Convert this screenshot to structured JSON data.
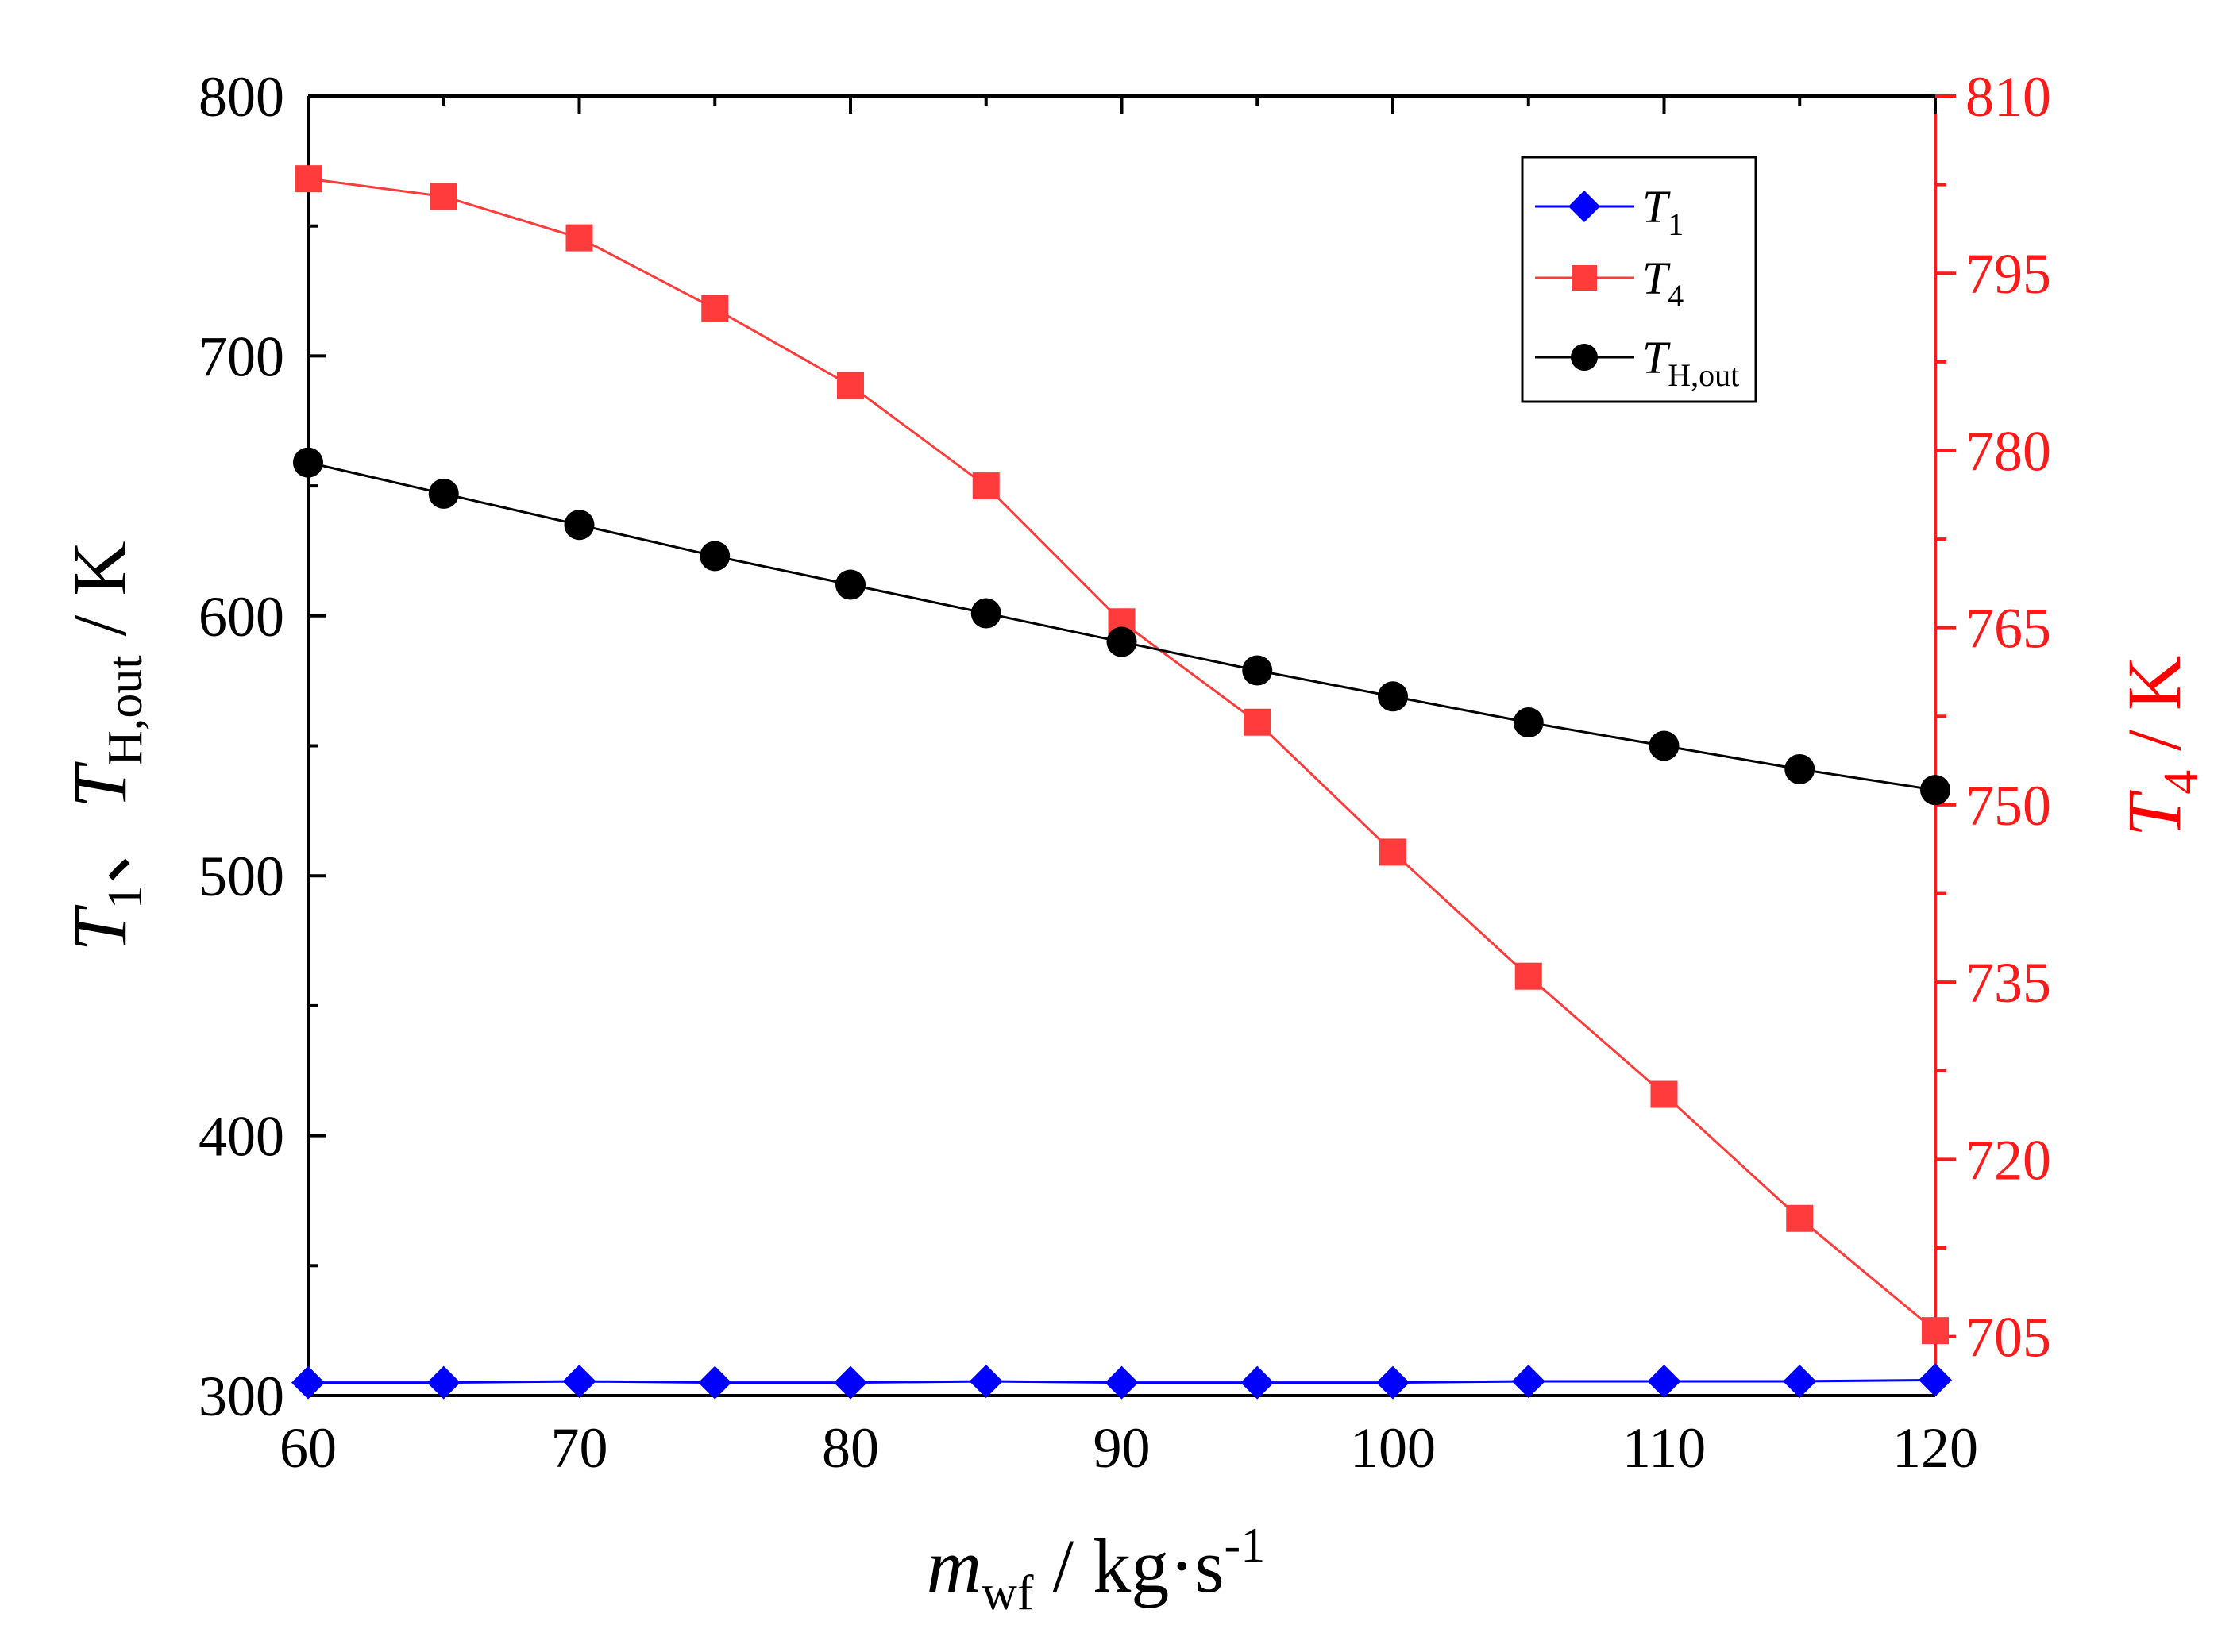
{
  "chart_data": {
    "type": "line",
    "x": [
      60,
      65,
      70,
      75,
      80,
      85,
      90,
      95,
      100,
      105,
      110,
      115,
      120
    ],
    "xlim": [
      60,
      120
    ],
    "x_ticks": [
      60,
      70,
      80,
      90,
      100,
      110,
      120
    ],
    "ylim_left": [
      300,
      800
    ],
    "y_ticks_left": [
      300,
      400,
      500,
      600,
      700,
      800
    ],
    "ylim_right": [
      700,
      810
    ],
    "y_ticks_right": [
      705,
      720,
      735,
      750,
      765,
      780,
      795,
      810
    ],
    "grid": false,
    "legend_position": "top-right",
    "xlabel": {
      "main": "m",
      "sub": "wf",
      "rest": " / kg·s",
      "sup": "-1"
    },
    "ylabel_left": {
      "t1": "T",
      "t1_sub": "1",
      "sep": "、",
      "th": "T",
      "th_sub": "H,out",
      "unit": " / K"
    },
    "ylabel_right": {
      "main": "T",
      "sub": "4",
      "unit": " / K"
    },
    "series": [
      {
        "name": "T",
        "name_sub": "1",
        "axis": "left",
        "color": "#0000ff",
        "marker": "diamond",
        "values": [
          305,
          305,
          305.5,
          305,
          305,
          305.5,
          305,
          305,
          305,
          305.5,
          305.5,
          305.5,
          306
        ]
      },
      {
        "name": "T",
        "name_sub": "4",
        "axis": "right",
        "color": "#ff3b3b",
        "marker": "square",
        "values": [
          803,
          801.5,
          798,
          792,
          785.5,
          777,
          765.5,
          757,
          746,
          735.5,
          725.5,
          715,
          705.5
        ]
      },
      {
        "name": "T",
        "name_sub": "H,out",
        "axis": "left",
        "color": "#000000",
        "marker": "circle",
        "values": [
          659,
          647,
          635,
          623,
          612,
          601,
          590,
          579,
          569,
          559,
          550,
          541,
          533
        ]
      }
    ],
    "colors": {
      "left_axis": "#000000",
      "right_axis": "#ff1a1a",
      "right_title": "#ff0000"
    }
  }
}
